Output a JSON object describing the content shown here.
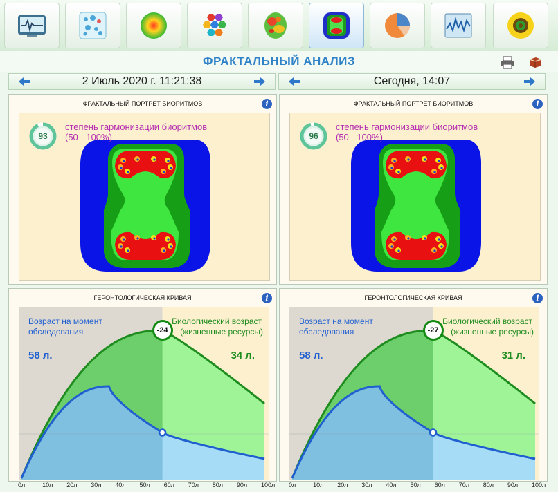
{
  "toolbar": {
    "buttons": [
      {
        "icon": "ecg-monitor-icon"
      },
      {
        "icon": "molecules-icon"
      },
      {
        "icon": "energy-sphere-icon"
      },
      {
        "icon": "hexagon-cells-icon"
      },
      {
        "icon": "brain-map-icon"
      },
      {
        "icon": "fractal-portrait-icon"
      },
      {
        "icon": "pie-chart-icon"
      },
      {
        "icon": "wave-chart-icon"
      },
      {
        "icon": "sunflower-icon"
      }
    ],
    "active_index": 5
  },
  "page": {
    "title": "ФРАКТАЛЬНЫЙ АНАЛИЗ",
    "print_icon": "printer-icon",
    "book_icon": "book-icon"
  },
  "columns": [
    {
      "date": "2 Июль 2020 г. 11:21:38",
      "fractal": {
        "header": "ФРАКТАЛЬНЫЙ ПОРТРЕТ БИОРИТМОВ",
        "score": "93",
        "score_value": 93,
        "label_line1": "степень гармонизации биоритмов",
        "label_line2": "(50 - 100%)"
      },
      "curve": {
        "header": "ГЕРОНТОЛОГИЧЕСКАЯ КРИВАЯ",
        "age_label_line1": "Возраст на момент",
        "age_label_line2": "обследования",
        "bio_label_line1": "Биологический возраст",
        "bio_label_line2": "(жизненные ресурсы)",
        "age_value": "58 л.",
        "bio_value": "34 л.",
        "delta": "-24",
        "chronological_age": 58,
        "biological_age": 34
      }
    },
    {
      "date": "Сегодня, 14:07",
      "fractal": {
        "header": "ФРАКТАЛЬНЫЙ ПОРТРЕТ БИОРИТМОВ",
        "score": "96",
        "score_value": 96,
        "label_line1": "степень гармонизации биоритмов",
        "label_line2": "(50 - 100%)"
      },
      "curve": {
        "header": "ГЕРОНТОЛОГИЧЕСКАЯ КРИВАЯ",
        "age_label_line1": "Возраст на момент",
        "age_label_line2": "обследования",
        "bio_label_line1": "Биологический возраст",
        "bio_label_line2": "(жизненные ресурсы)",
        "age_value": "58 л.",
        "bio_value": "31 л.",
        "delta": "-27",
        "chronological_age": 58,
        "biological_age": 31
      }
    }
  ],
  "chart_data": {
    "type": "area",
    "title": "ГЕРОНТОЛОГИЧЕСКАЯ КРИВАЯ",
    "xlabel": "",
    "ylabel": "",
    "x_ticks": [
      "0л",
      "10л",
      "20л",
      "30л",
      "40л",
      "50л",
      "60л",
      "70л",
      "80л",
      "90л",
      "100л"
    ],
    "xlim": [
      0,
      100
    ],
    "series": [
      {
        "name": "Биологический возраст (жизненные ресурсы)",
        "color": "#1e8c1e"
      },
      {
        "name": "Возраст на момент обследования",
        "color": "#1f5fd0"
      }
    ]
  },
  "colors": {
    "accent": "#2f82c8",
    "magenta": "#b52db0",
    "green": "#1e8c1e",
    "blue": "#1f5fd0"
  }
}
